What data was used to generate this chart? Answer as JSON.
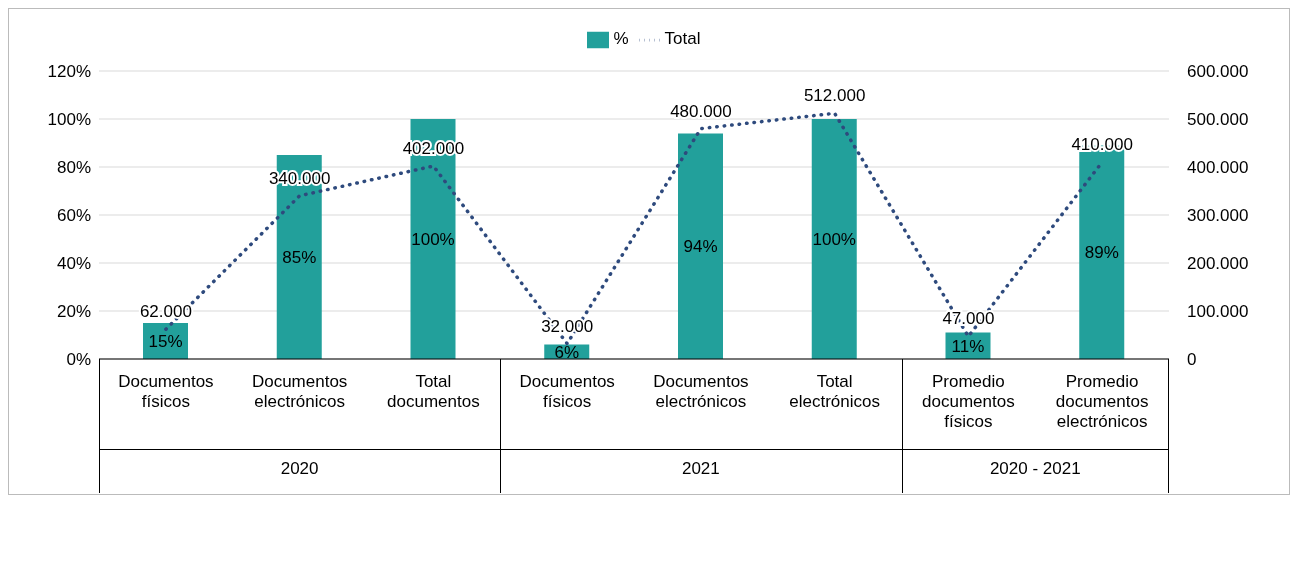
{
  "chart_data": {
    "type": "bar",
    "categories": [
      "Documentos físicos",
      "Documentos electrónicos",
      "Total documentos",
      "Documentos físicos",
      "Documentos electrónicos",
      "Total electrónicos",
      "Promedio documentos físicos",
      "Promedio documentos electrónicos"
    ],
    "series": [
      {
        "name": "%",
        "color": "#22a09b",
        "values": [
          15,
          85,
          100,
          6,
          94,
          100,
          11,
          89
        ],
        "value_labels": [
          "15%",
          "85%",
          "100%",
          "6%",
          "94%",
          "100%",
          "11%",
          "89%"
        ]
      },
      {
        "name": "Total",
        "type": "line",
        "axis": "y2",
        "color": "#2e4a7d",
        "line_style": "dotted",
        "marker": "none",
        "values": [
          62000,
          340000,
          402000,
          32000,
          480000,
          512000,
          47000,
          410000
        ],
        "value_labels": [
          "62.000",
          "340.000",
          "402.000",
          "32.000",
          "480.000",
          "512.000",
          "47.000",
          "410.000"
        ]
      }
    ],
    "ylim": [
      0,
      120
    ],
    "yticks": [
      {
        "value": 0,
        "label": "0%"
      },
      {
        "value": 20,
        "label": "20%"
      },
      {
        "value": 40,
        "label": "40%"
      },
      {
        "value": 60,
        "label": "60%"
      },
      {
        "value": 80,
        "label": "80%"
      },
      {
        "value": 100,
        "label": "100%"
      },
      {
        "value": 120,
        "label": "120%"
      }
    ],
    "y2lim": [
      0,
      600000
    ],
    "y2ticks": [
      0,
      {
        "value": 100000,
        "label": "100.000"
      },
      {
        "value": 200000,
        "label": "200.000"
      },
      {
        "value": 300000,
        "label": "300.000"
      },
      {
        "value": 400000,
        "label": "400.000"
      },
      {
        "value": 500000,
        "label": "500.000"
      },
      {
        "value": 600000,
        "label": "600.000"
      }
    ],
    "grid": "y",
    "legend": "top",
    "annotations": [
      "2020",
      "2021",
      "2020 - 2021"
    ]
  }
}
